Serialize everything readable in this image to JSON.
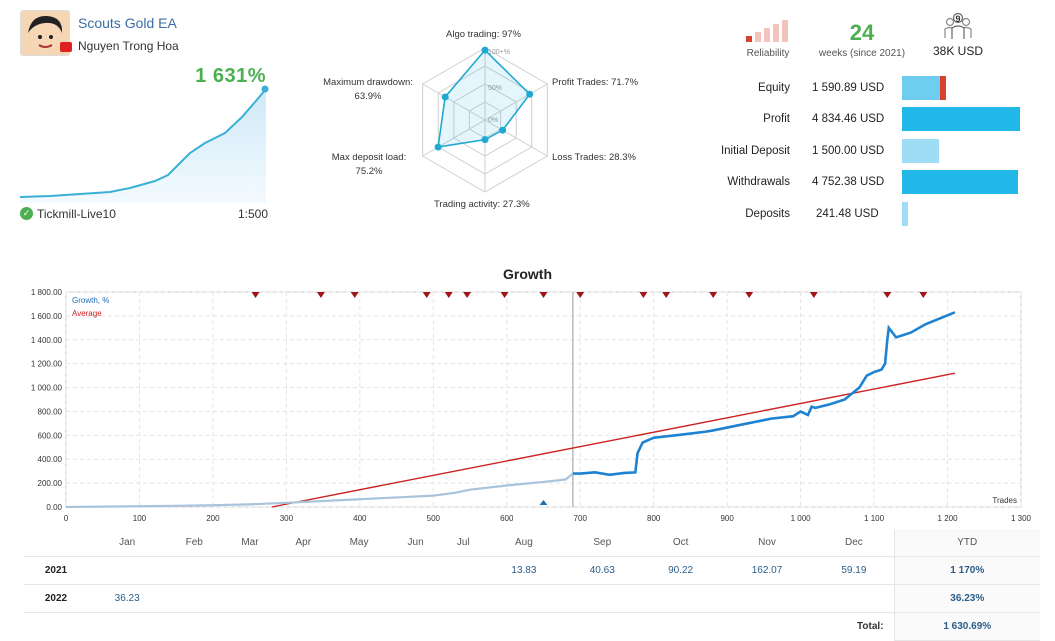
{
  "signal": {
    "title": "Scouts Gold EA",
    "author": "Nguyen Trong Hoa",
    "gain": "1 631%",
    "broker": "Tickmill-Live10",
    "leverage": "1:500"
  },
  "radar": {
    "labels": {
      "algo": "Algo trading: 97%",
      "profit": "Profit Trades: 71.7%",
      "loss": "Loss Trades: 28.3%",
      "activity": "Trading activity: 27.3%",
      "load_1": "Max deposit load:",
      "load_2": "75.2%",
      "dd_1": "Maximum drawdown:",
      "dd_2": "63.9%"
    },
    "ring_labels": [
      "100+%",
      "50%",
      "0%"
    ],
    "values": [
      97,
      71.7,
      28.3,
      27.3,
      75.2,
      63.9
    ]
  },
  "stats": {
    "reliability_label": "Reliability",
    "reliability_level": 0.2,
    "weeks": "24",
    "weeks_label": "weeks (since 2021)",
    "subscribers": "9",
    "volume": "38K USD"
  },
  "balance": [
    {
      "label": "Equity",
      "value": "1 590.89 USD",
      "fraction": 0.33,
      "red_fraction": 0.05
    },
    {
      "label": "Profit",
      "value": "4 834.46 USD",
      "fraction": 1.0
    },
    {
      "label": "Initial Deposit",
      "value": "1 500.00 USD",
      "fraction": 0.31
    },
    {
      "label": "Withdrawals",
      "value": "4 752.38 USD",
      "fraction": 0.98
    },
    {
      "label": "Deposits",
      "value": "241.48 USD",
      "fraction": 0.05
    }
  ],
  "colors": {
    "accent": "#22b8ea",
    "accent_light": "#9fdcf5",
    "growth": "#1e82d2",
    "growth_early": "#a8c4dc",
    "average": "#cc2222",
    "gain": "#4caf50",
    "marker": "#a01616"
  },
  "chart_data": {
    "type": "line",
    "title": "Growth",
    "xlabel": "Trades",
    "ylabel": "",
    "xlim": [
      0,
      1300
    ],
    "ylim": [
      0,
      1800
    ],
    "x_ticks": [
      0,
      100,
      200,
      300,
      400,
      500,
      600,
      700,
      800,
      900,
      1000,
      1100,
      1200,
      1300
    ],
    "x_tick_labels": [
      "0",
      "100",
      "200",
      "300",
      "400",
      "500",
      "600",
      "700",
      "800",
      "900",
      "1 000",
      "1 100",
      "1 200",
      "1 300"
    ],
    "y_ticks": [
      0,
      200,
      400,
      600,
      800,
      1000,
      1200,
      1400,
      1600,
      1800
    ],
    "y_tick_labels": [
      "0.00",
      "200.00",
      "400.00",
      "600.00",
      "800.00",
      "1 000.00",
      "1 200.00",
      "1 400.00",
      "1 600.00",
      "1 800.00"
    ],
    "grid": true,
    "legend": "top-left",
    "series": [
      {
        "name": "Growth, %",
        "x": [
          0,
          50,
          100,
          150,
          200,
          250,
          300,
          350,
          400,
          450,
          500,
          530,
          550,
          600,
          650,
          680,
          690,
          700,
          720,
          740,
          760,
          775,
          778,
          785,
          800,
          830,
          870,
          880,
          920,
          960,
          990,
          1000,
          1010,
          1015,
          1020,
          1040,
          1060,
          1080,
          1090,
          1100,
          1110,
          1115,
          1118,
          1120,
          1130,
          1150,
          1170,
          1190,
          1210
        ],
        "y": [
          0,
          3,
          6,
          10,
          15,
          22,
          35,
          50,
          65,
          80,
          95,
          120,
          145,
          180,
          210,
          230,
          280,
          280,
          290,
          270,
          285,
          290,
          450,
          540,
          580,
          600,
          630,
          640,
          690,
          740,
          760,
          800,
          770,
          840,
          830,
          860,
          900,
          1000,
          1100,
          1130,
          1150,
          1200,
          1400,
          1500,
          1420,
          1460,
          1530,
          1580,
          1630
        ]
      },
      {
        "name": "Average",
        "x": [
          280,
          1210
        ],
        "y": [
          0,
          1120
        ]
      }
    ],
    "markers_x": [
      258,
      347,
      393,
      491,
      521,
      546,
      597,
      650,
      700,
      786,
      817,
      881,
      930,
      1018,
      1118,
      1167
    ]
  },
  "monthly": {
    "months": [
      "Jan",
      "Feb",
      "Mar",
      "Apr",
      "May",
      "Jun",
      "Jul",
      "Aug",
      "Sep",
      "Oct",
      "Nov",
      "Dec"
    ],
    "ytd_label": "YTD",
    "rows": [
      {
        "year": "2021",
        "values": [
          "",
          "",
          "",
          "",
          "",
          "",
          "",
          "13.83",
          "40.63",
          "90.22",
          "162.07",
          "59.19"
        ],
        "ytd": "1 170%"
      },
      {
        "year": "2022",
        "values": [
          "36.23",
          "",
          "",
          "",
          "",
          "",
          "",
          "",
          "",
          "",
          "",
          ""
        ],
        "ytd": "36.23%"
      }
    ],
    "total_label": "Total:",
    "total": "1 630.69%"
  }
}
